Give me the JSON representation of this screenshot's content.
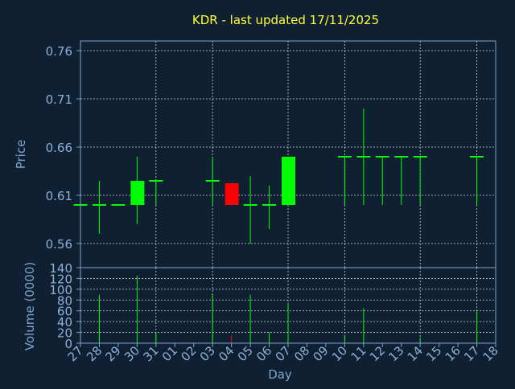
{
  "chart_data": {
    "type": "candlestick",
    "title": "KDR - last updated 17/11/2025",
    "xlabel": "Day",
    "price_ylabel": "Price",
    "volume_ylabel": "Volume (0000)",
    "price_ylim": [
      0.535,
      0.77
    ],
    "price_ticks": [
      "0.76",
      "0.71",
      "0.66",
      "0.61",
      "0.56"
    ],
    "price_tick_values": [
      0.76,
      0.71,
      0.66,
      0.61,
      0.56
    ],
    "volume_ylim": [
      0,
      140
    ],
    "volume_ticks": [
      "140",
      "120",
      "100",
      "80",
      "60",
      "40",
      "20",
      "0"
    ],
    "volume_tick_values": [
      140,
      120,
      100,
      80,
      60,
      40,
      20,
      0
    ],
    "x_ticks": [
      "27",
      "28",
      "29",
      "30",
      "31",
      "01",
      "02",
      "03",
      "04",
      "05",
      "06",
      "07",
      "08",
      "09",
      "10",
      "11",
      "12",
      "13",
      "14",
      "15",
      "16",
      "17",
      "18"
    ],
    "gridlines_at": [
      "27",
      "31",
      "03",
      "07",
      "10",
      "14",
      "17"
    ],
    "grid": true,
    "colors": {
      "up": "#00ff00",
      "down": "#ff0000",
      "flat": "#00ff00",
      "background": "#0f2033"
    },
    "candles": [
      {
        "day": "27",
        "open": 0.6,
        "high": 0.6,
        "low": 0.6,
        "close": 0.6,
        "volume": 0
      },
      {
        "day": "28",
        "open": 0.6,
        "high": 0.625,
        "low": 0.57,
        "close": 0.6,
        "volume": 90
      },
      {
        "day": "29",
        "open": 0.6,
        "high": 0.6,
        "low": 0.6,
        "close": 0.6,
        "volume": 0
      },
      {
        "day": "30",
        "open": 0.6,
        "high": 0.65,
        "low": 0.58,
        "close": 0.625,
        "volume": 125
      },
      {
        "day": "31",
        "open": 0.625,
        "high": 0.625,
        "low": 0.6,
        "close": 0.625,
        "volume": 20
      },
      {
        "day": "03",
        "open": 0.625,
        "high": 0.65,
        "low": 0.6,
        "close": 0.625,
        "volume": 90
      },
      {
        "day": "04",
        "open": 0.6225,
        "high": 0.6225,
        "low": 0.6,
        "close": 0.6,
        "volume": 15
      },
      {
        "day": "05",
        "open": 0.6,
        "high": 0.63,
        "low": 0.56,
        "close": 0.6,
        "volume": 90
      },
      {
        "day": "06",
        "open": 0.6,
        "high": 0.62,
        "low": 0.575,
        "close": 0.6,
        "volume": 20
      },
      {
        "day": "07",
        "open": 0.6,
        "high": 0.65,
        "low": 0.6,
        "close": 0.65,
        "volume": 75
      },
      {
        "day": "10",
        "open": 0.65,
        "high": 0.65,
        "low": 0.6,
        "close": 0.65,
        "volume": 15
      },
      {
        "day": "11",
        "open": 0.65,
        "high": 0.7,
        "low": 0.6,
        "close": 0.65,
        "volume": 65
      },
      {
        "day": "12",
        "open": 0.65,
        "high": 0.65,
        "low": 0.6,
        "close": 0.65,
        "volume": 0
      },
      {
        "day": "13",
        "open": 0.65,
        "high": 0.65,
        "low": 0.6,
        "close": 0.65,
        "volume": 0
      },
      {
        "day": "14",
        "open": 0.65,
        "high": 0.65,
        "low": 0.6,
        "close": 0.65,
        "volume": 10
      },
      {
        "day": "17",
        "open": 0.65,
        "high": 0.65,
        "low": 0.6,
        "close": 0.65,
        "volume": 60
      }
    ]
  }
}
